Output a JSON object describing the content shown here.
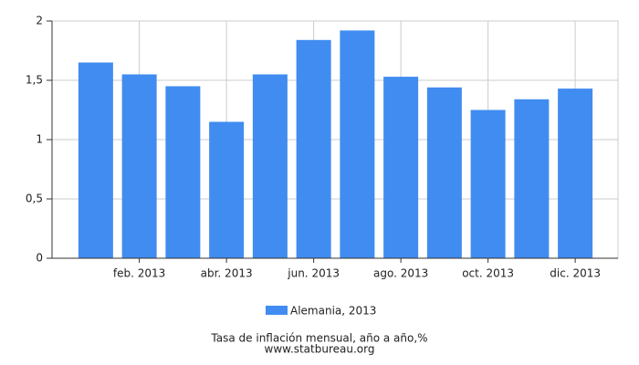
{
  "chart_data": {
    "type": "bar",
    "title": "Tasa de inflación mensual, año a año,%",
    "source": "www.statbureau.org",
    "categories": [
      null,
      "feb. 2013",
      null,
      "abr. 2013",
      null,
      "jun. 2013",
      null,
      "ago. 2013",
      null,
      "oct. 2013",
      null,
      "dic. 2013"
    ],
    "series": [
      {
        "name": "Alemania, 2013",
        "color": "#418cf0",
        "values": [
          1.65,
          1.55,
          1.45,
          1.15,
          1.55,
          1.84,
          1.92,
          1.53,
          1.44,
          1.25,
          1.34,
          1.43
        ]
      }
    ],
    "ylim": [
      0,
      2
    ],
    "yticks": [
      0,
      {
        "value": 0.5,
        "label": "0,5"
      },
      1,
      {
        "value": 1.5,
        "label": "1,5"
      },
      2
    ],
    "grid": true
  }
}
